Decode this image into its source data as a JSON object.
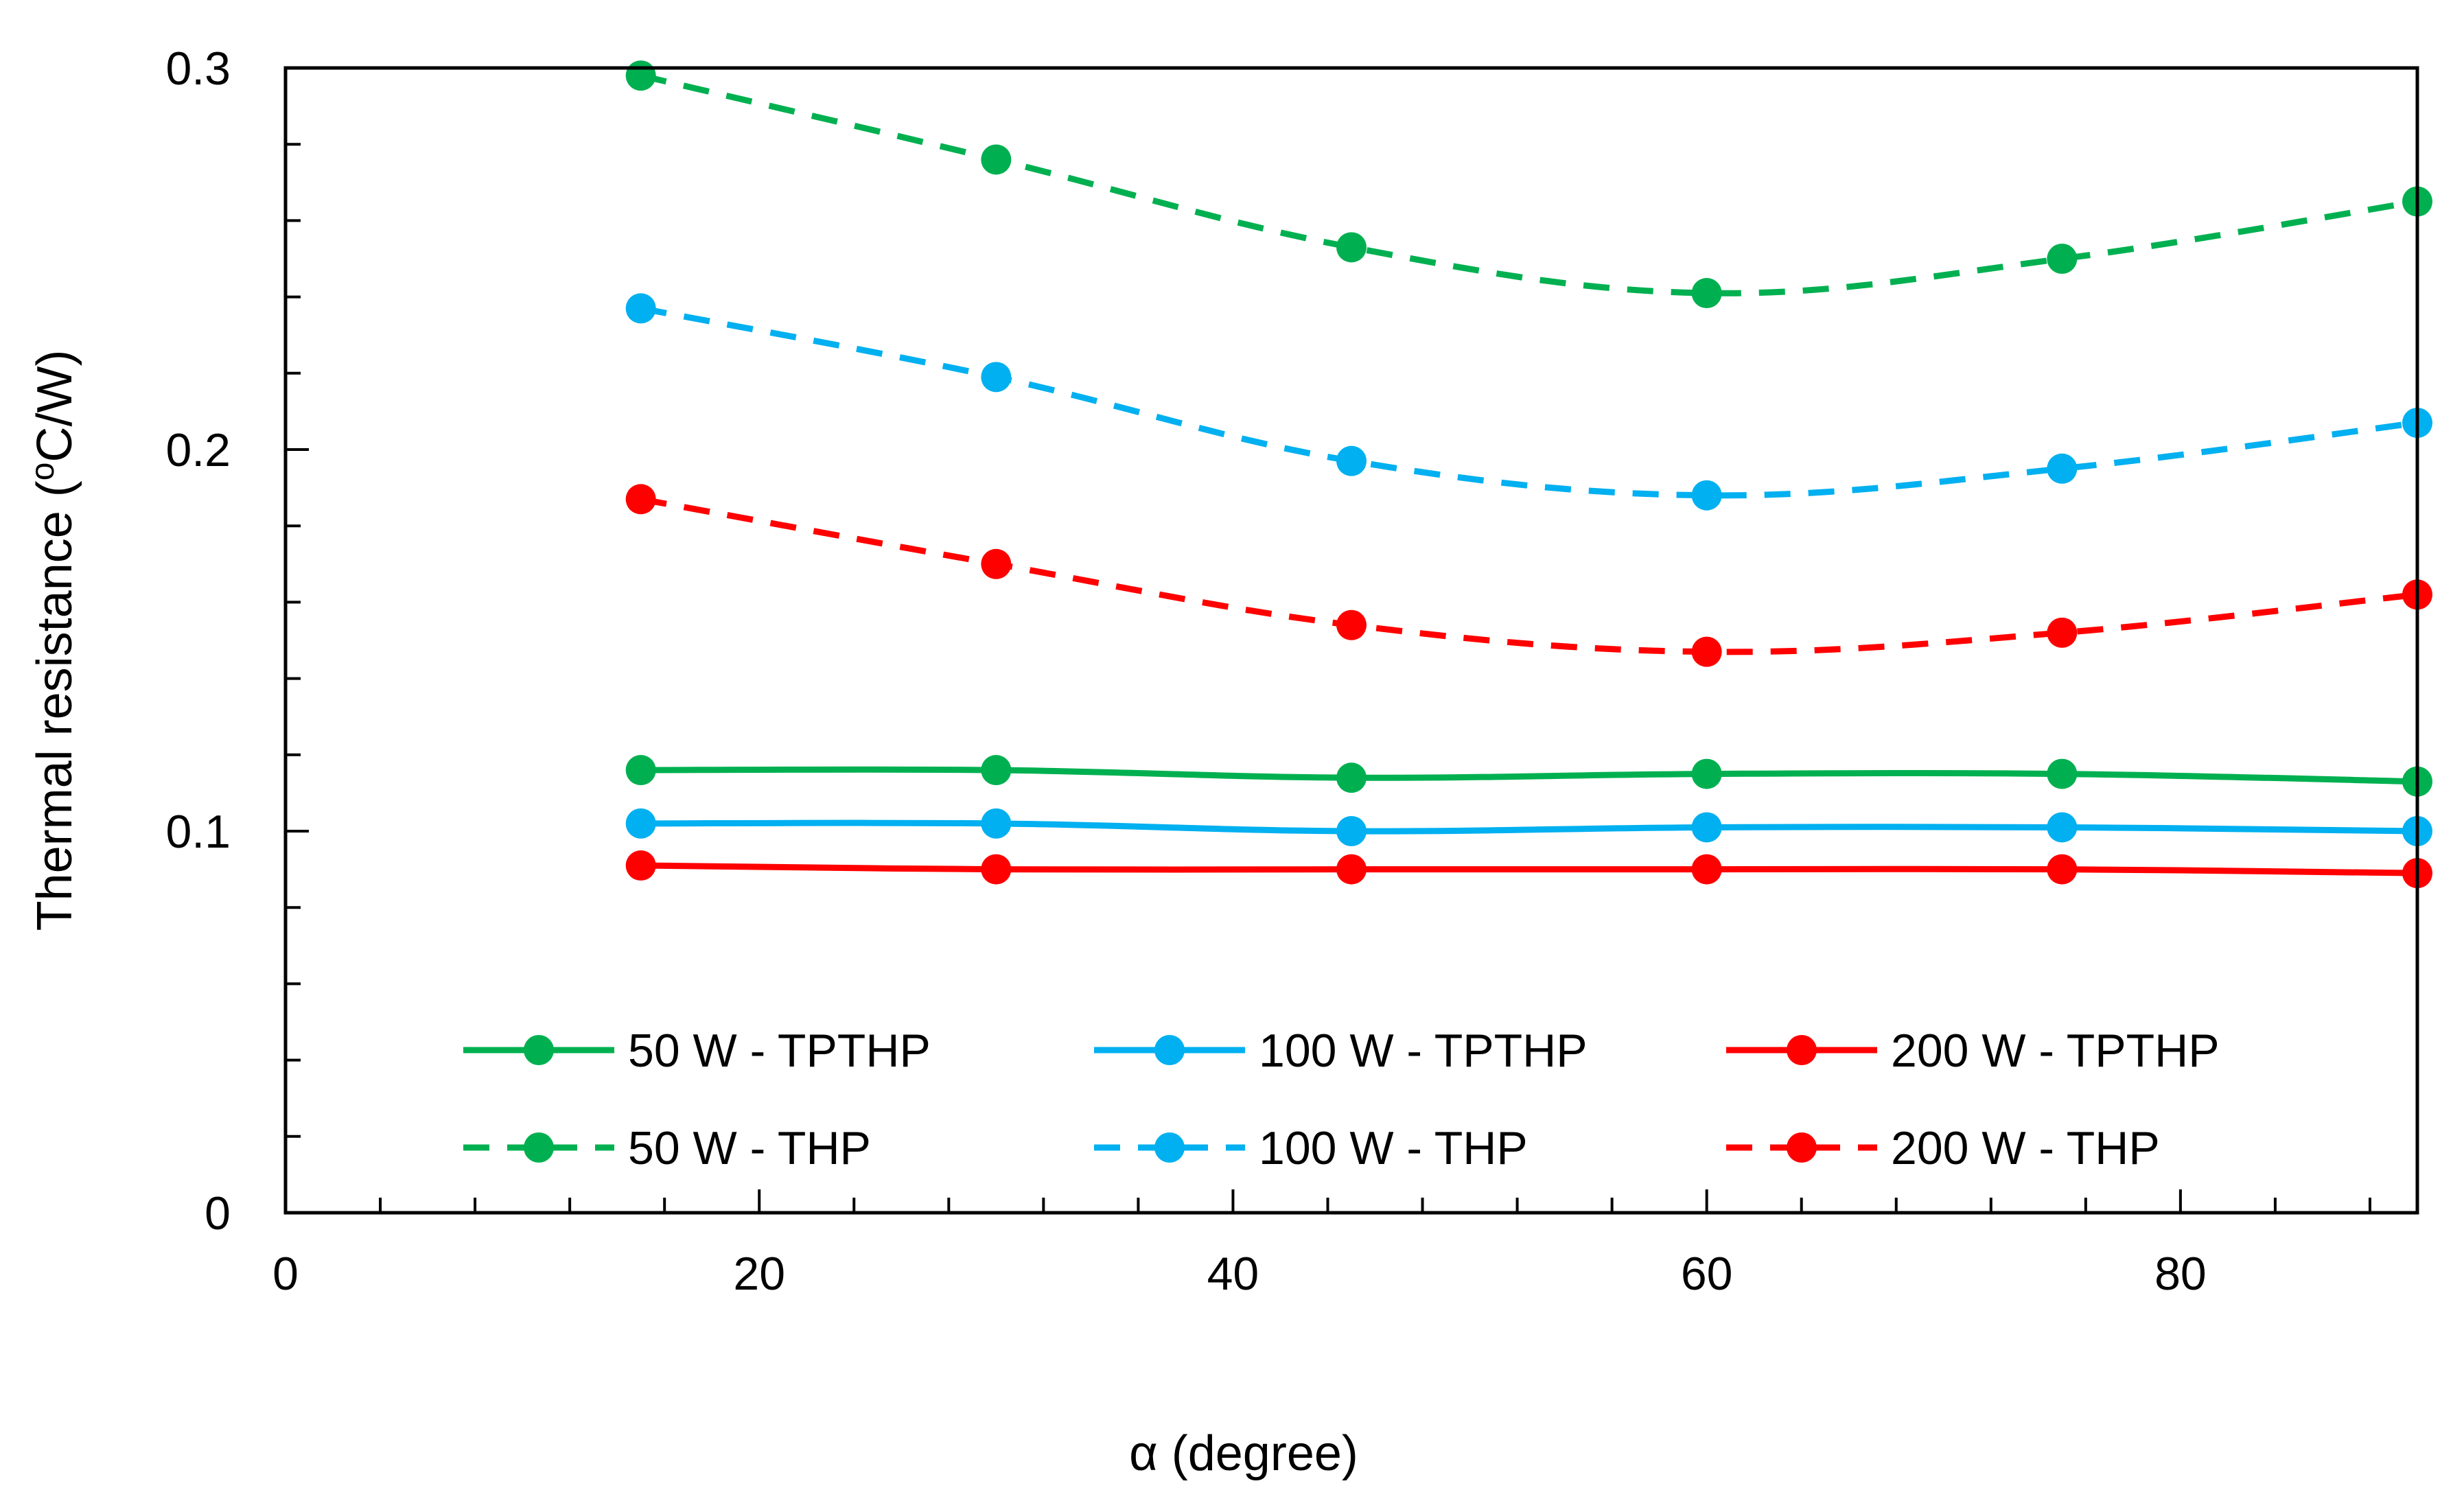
{
  "chart_data": {
    "type": "line",
    "title": "",
    "xlabel": "α (degree)",
    "ylabel": "Thermal resistance (oC/W)",
    "ylabel_parts": {
      "prefix": "Thermal resistance (",
      "superscript": "o",
      "suffix": "C/W)"
    },
    "xlim": [
      0,
      90
    ],
    "ylim": [
      0,
      0.3
    ],
    "xticks": [
      0,
      20,
      40,
      60,
      80
    ],
    "xtick_labels": [
      "0",
      "20",
      "40",
      "60",
      "80"
    ],
    "yticks": [
      0,
      0.1,
      0.2,
      0.3
    ],
    "ytick_labels": [
      "0",
      "0.1",
      "0.2",
      "0.3"
    ],
    "grid": false,
    "legend_position": "bottom, inside plot area (2 rows x 3 columns)",
    "x": [
      15,
      30,
      45,
      60,
      75,
      90
    ],
    "series": [
      {
        "name": "50 W - TPTHP",
        "color": "#00B050",
        "dashed": false,
        "values": [
          0.116,
          0.116,
          0.114,
          0.115,
          0.115,
          0.113
        ]
      },
      {
        "name": "100 W - TPTHP",
        "color": "#00B0F0",
        "dashed": false,
        "values": [
          0.102,
          0.102,
          0.1,
          0.101,
          0.101,
          0.1
        ]
      },
      {
        "name": "200 W - TPTHP",
        "color": "#FF0000",
        "dashed": false,
        "values": [
          0.091,
          0.09,
          0.09,
          0.09,
          0.09,
          0.089
        ]
      },
      {
        "name": "50 W - THP",
        "color": "#00B050",
        "dashed": true,
        "values": [
          0.298,
          0.276,
          0.253,
          0.241,
          0.25,
          0.265
        ]
      },
      {
        "name": "100 W - THP",
        "color": "#00B0F0",
        "dashed": true,
        "values": [
          0.237,
          0.219,
          0.197,
          0.188,
          0.195,
          0.207
        ]
      },
      {
        "name": "200 W - THP",
        "color": "#FF0000",
        "dashed": true,
        "values": [
          0.187,
          0.17,
          0.154,
          0.147,
          0.152,
          0.162
        ]
      }
    ]
  }
}
